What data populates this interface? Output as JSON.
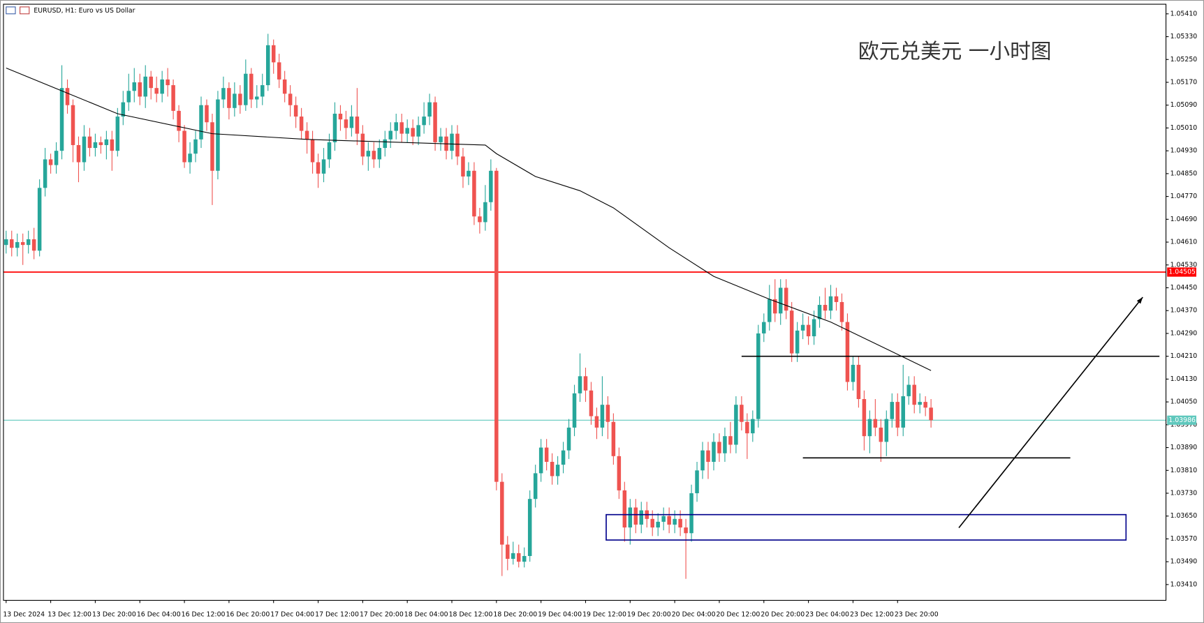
{
  "chart_data": {
    "type": "candlestick",
    "title": "EURUSD, H1:  Euro vs US Dollar",
    "annotation": "欧元兑美元 一小时图",
    "up_color": "#26a69a",
    "down_color": "#ef5350",
    "ylim": [
      1.03356,
      1.05445
    ],
    "xlim": [
      -0.41,
      208.1
    ],
    "yticks": [
      {
        "value": 1.0541,
        "label": "1.05410"
      },
      {
        "value": 1.0533,
        "label": "1.05330"
      },
      {
        "value": 1.0525,
        "label": "1.05250"
      },
      {
        "value": 1.0517,
        "label": "1.05170"
      },
      {
        "value": 1.0509,
        "label": "1.05090"
      },
      {
        "value": 1.0501,
        "label": "1.05010"
      },
      {
        "value": 1.0493,
        "label": "1.04930"
      },
      {
        "value": 1.0485,
        "label": "1.04850"
      },
      {
        "value": 1.0477,
        "label": "1.04770"
      },
      {
        "value": 1.0469,
        "label": "1.04690"
      },
      {
        "value": 1.0461,
        "label": "1.04610"
      },
      {
        "value": 1.0453,
        "label": "1.04530"
      },
      {
        "value": 1.0445,
        "label": "1.04450"
      },
      {
        "value": 1.0437,
        "label": "1.04370"
      },
      {
        "value": 1.0429,
        "label": "1.04290"
      },
      {
        "value": 1.0421,
        "label": "1.04210"
      },
      {
        "value": 1.0413,
        "label": "1.04130"
      },
      {
        "value": 1.0405,
        "label": "1.04050"
      },
      {
        "value": 1.0397,
        "label": "1.03970"
      },
      {
        "value": 1.0389,
        "label": "1.03890"
      },
      {
        "value": 1.0381,
        "label": "1.03810"
      },
      {
        "value": 1.0373,
        "label": "1.03730"
      },
      {
        "value": 1.0365,
        "label": "1.03650"
      },
      {
        "value": 1.0357,
        "label": "1.03570"
      },
      {
        "value": 1.0349,
        "label": "1.03490"
      },
      {
        "value": 1.0341,
        "label": "1.03410"
      }
    ],
    "categories": [
      "13 Dec 2024",
      null,
      null,
      null,
      null,
      null,
      null,
      null,
      "13 Dec 12:00",
      null,
      null,
      null,
      null,
      null,
      null,
      null,
      "13 Dec 20:00",
      null,
      null,
      null,
      null,
      null,
      null,
      null,
      "16 Dec 04:00",
      null,
      null,
      null,
      null,
      null,
      null,
      null,
      "16 Dec 12:00",
      null,
      null,
      null,
      null,
      null,
      null,
      null,
      "16 Dec 20:00",
      null,
      null,
      null,
      null,
      null,
      null,
      null,
      "17 Dec 04:00",
      null,
      null,
      null,
      null,
      null,
      null,
      null,
      "17 Dec 12:00",
      null,
      null,
      null,
      null,
      null,
      null,
      null,
      "17 Dec 20:00",
      null,
      null,
      null,
      null,
      null,
      null,
      null,
      "18 Dec 04:00",
      null,
      null,
      null,
      null,
      null,
      null,
      null,
      "18 Dec 12:00",
      null,
      null,
      null,
      null,
      null,
      null,
      null,
      "18 Dec 20:00",
      null,
      null,
      null,
      null,
      null,
      null,
      null,
      "19 Dec 04:00",
      null,
      null,
      null,
      null,
      null,
      null,
      null,
      "19 Dec 12:00",
      null,
      null,
      null,
      null,
      null,
      null,
      null,
      "19 Dec 20:00",
      null,
      null,
      null,
      null,
      null,
      null,
      null,
      "20 Dec 04:00",
      null,
      null,
      null,
      null,
      null,
      null,
      null,
      "20 Dec 12:00",
      null,
      null,
      null,
      null,
      null,
      null,
      null,
      "20 Dec 20:00",
      null,
      null,
      null,
      null,
      null,
      null,
      null,
      "23 Dec 04:00",
      null,
      null,
      null,
      null,
      null,
      null,
      null,
      "23 Dec 12:00",
      null,
      null,
      null,
      null,
      null,
      null,
      null,
      "23 Dec 20:00",
      null,
      null,
      null,
      null,
      null,
      null
    ],
    "open": [
      1.046,
      1.0462,
      1.0459,
      1.0461,
      1.046,
      1.0462,
      1.0458,
      1.048,
      1.049,
      1.0488,
      1.0493,
      1.0515,
      1.0509,
      1.0495,
      1.0489,
      1.0498,
      1.0494,
      1.0496,
      1.0495,
      1.0497,
      1.0493,
      1.0505,
      1.051,
      1.0514,
      1.0517,
      1.0512,
      1.0519,
      1.0515,
      1.0513,
      1.0518,
      1.0516,
      1.0507,
      1.05,
      1.0489,
      1.0492,
      1.0497,
      1.0509,
      1.0503,
      1.0486,
      1.0511,
      1.0515,
      1.0508,
      1.0513,
      1.0509,
      1.052,
      1.0511,
      1.0512,
      1.0516,
      1.053,
      1.0524,
      1.0518,
      1.0513,
      1.0509,
      1.0505,
      1.05,
      1.0497,
      1.0489,
      1.0485,
      1.049,
      1.0496,
      1.0506,
      1.0504,
      1.0501,
      1.0505,
      1.0499,
      1.0491,
      1.0493,
      1.049,
      1.0494,
      1.0497,
      1.05,
      1.0503,
      1.0499,
      1.0501,
      1.0498,
      1.0502,
      1.0505,
      1.051,
      1.0496,
      1.0498,
      1.0493,
      1.0499,
      1.0491,
      1.0484,
      1.0486,
      1.047,
      1.0468,
      1.0475,
      1.0486,
      1.0377,
      1.0355,
      1.035,
      1.0352,
      1.0349,
      1.0351,
      1.0371,
      1.038,
      1.0389,
      1.0384,
      1.0379,
      1.0383,
      1.0388,
      1.0396,
      1.0408,
      1.0414,
      1.0409,
      1.04,
      1.0396,
      1.0404,
      1.0398,
      1.0386,
      1.0374,
      1.0361,
      1.0368,
      1.0362,
      1.0367,
      1.0364,
      1.0361,
      1.0363,
      1.0365,
      1.0362,
      1.0364,
      1.0361,
      1.0359,
      1.0373,
      1.0381,
      1.0388,
      1.0384,
      1.0391,
      1.0387,
      1.0393,
      1.039,
      1.0404,
      1.0398,
      1.0394,
      1.0399,
      1.0429,
      1.0433,
      1.0441,
      1.0436,
      1.0445,
      1.0437,
      1.0422,
      1.043,
      1.0432,
      1.0428,
      1.0434,
      1.0439,
      1.0437,
      1.0442,
      1.044,
      1.0433,
      1.0412,
      1.0418,
      1.0406,
      1.0393,
      1.0399,
      1.0396,
      1.0391,
      1.0399,
      1.0405,
      1.0396,
      1.0407,
      1.0411,
      1.0404,
      1.0405,
      1.0403
    ],
    "high": [
      1.0465,
      1.0465,
      1.0464,
      1.0464,
      1.0465,
      1.0466,
      1.0483,
      1.0494,
      1.0492,
      1.0496,
      1.0523,
      1.0518,
      1.0511,
      1.0498,
      1.0502,
      1.0501,
      1.0499,
      1.0498,
      1.05,
      1.05,
      1.0508,
      1.0514,
      1.052,
      1.0522,
      1.052,
      1.0523,
      1.0521,
      1.0519,
      1.0521,
      1.0522,
      1.0518,
      1.0509,
      1.0502,
      1.0496,
      1.05,
      1.0512,
      1.0511,
      1.0506,
      1.0514,
      1.0519,
      1.0517,
      1.0517,
      1.0516,
      1.0525,
      1.0522,
      1.0516,
      1.052,
      1.0534,
      1.0532,
      1.0527,
      1.0521,
      1.0516,
      1.0512,
      1.0508,
      1.0503,
      1.05,
      1.0492,
      1.0494,
      1.0499,
      1.051,
      1.0509,
      1.0507,
      1.0509,
      1.0515,
      1.0502,
      1.0496,
      1.0496,
      1.0497,
      1.05,
      1.0503,
      1.0506,
      1.0506,
      1.0504,
      1.0504,
      1.0505,
      1.051,
      1.0513,
      1.0512,
      1.0501,
      1.0501,
      1.0502,
      1.0502,
      1.0494,
      1.0489,
      1.0489,
      1.0473,
      1.0481,
      1.049,
      1.0487,
      1.038,
      1.0358,
      1.0356,
      1.0355,
      1.0354,
      1.0374,
      1.0383,
      1.0392,
      1.0392,
      1.0387,
      1.0386,
      1.0391,
      1.0399,
      1.0411,
      1.0422,
      1.0417,
      1.0412,
      1.0403,
      1.0414,
      1.0407,
      1.0401,
      1.0389,
      1.0377,
      1.0371,
      1.0371,
      1.037,
      1.037,
      1.0367,
      1.0366,
      1.0368,
      1.0368,
      1.0367,
      1.0367,
      1.0364,
      1.0376,
      1.0384,
      1.0391,
      1.0391,
      1.0394,
      1.0394,
      1.0396,
      1.0398,
      1.0407,
      1.0407,
      1.0401,
      1.0402,
      1.0432,
      1.0436,
      1.0446,
      1.0448,
      1.0448,
      1.0448,
      1.044,
      1.0433,
      1.0436,
      1.0435,
      1.0437,
      1.0442,
      1.0445,
      1.0446,
      1.0445,
      1.0443,
      1.0436,
      1.0421,
      1.0421,
      1.0409,
      1.0402,
      1.0406,
      1.0399,
      1.0402,
      1.0408,
      1.0408,
      1.0418,
      1.0414,
      1.0414,
      1.0408,
      1.0407,
      1.0406
    ],
    "low": [
      1.0457,
      1.0456,
      1.0456,
      1.0453,
      1.0457,
      1.0455,
      1.0456,
      1.0477,
      1.0485,
      1.0485,
      1.049,
      1.0506,
      1.0489,
      1.0482,
      1.0486,
      1.0491,
      1.0491,
      1.0492,
      1.049,
      1.0486,
      1.0491,
      1.0502,
      1.0507,
      1.051,
      1.0509,
      1.0508,
      1.0511,
      1.051,
      1.051,
      1.0512,
      1.0504,
      1.0496,
      1.0487,
      1.0485,
      1.0489,
      1.0494,
      1.05,
      1.0474,
      1.0483,
      1.0508,
      1.0504,
      1.0505,
      1.0506,
      1.0507,
      1.0508,
      1.0508,
      1.0509,
      1.0514,
      1.052,
      1.0515,
      1.051,
      1.0505,
      1.0501,
      1.0497,
      1.0492,
      1.0485,
      1.048,
      1.0482,
      1.0487,
      1.0493,
      1.05,
      1.0497,
      1.0498,
      1.0495,
      1.0488,
      1.0486,
      1.0487,
      1.0487,
      1.0491,
      1.0494,
      1.0497,
      1.0496,
      1.0496,
      1.0495,
      1.0495,
      1.0499,
      1.0502,
      1.0493,
      1.0493,
      1.049,
      1.049,
      1.0488,
      1.048,
      1.0481,
      1.0467,
      1.0464,
      1.0465,
      1.0472,
      1.0374,
      1.0344,
      1.0346,
      1.0348,
      1.0347,
      1.0347,
      1.0349,
      1.0368,
      1.0377,
      1.0381,
      1.0376,
      1.0376,
      1.038,
      1.0385,
      1.0393,
      1.0405,
      1.0405,
      1.0397,
      1.0392,
      1.0393,
      1.0392,
      1.0383,
      1.0371,
      1.0356,
      1.0355,
      1.0359,
      1.0359,
      1.0361,
      1.0358,
      1.0358,
      1.036,
      1.0359,
      1.0359,
      1.0358,
      1.0343,
      1.0356,
      1.037,
      1.0378,
      1.0378,
      1.0381,
      1.0384,
      1.0384,
      1.0387,
      1.0387,
      1.0395,
      1.0385,
      1.0391,
      1.0396,
      1.0426,
      1.043,
      1.0433,
      1.0432,
      1.0434,
      1.0419,
      1.0419,
      1.0427,
      1.0425,
      1.0425,
      1.0431,
      1.0434,
      1.0434,
      1.0437,
      1.043,
      1.0409,
      1.0409,
      1.0403,
      1.0388,
      1.0387,
      1.0393,
      1.0384,
      1.0386,
      1.0396,
      1.0393,
      1.0393,
      1.0404,
      1.0401,
      1.0401,
      1.04,
      1.0396
    ],
    "close": [
      1.0462,
      1.0459,
      1.0461,
      1.046,
      1.0462,
      1.0458,
      1.048,
      1.049,
      1.0488,
      1.0493,
      1.0515,
      1.0509,
      1.0495,
      1.0489,
      1.0498,
      1.0494,
      1.0496,
      1.0495,
      1.0497,
      1.0493,
      1.0505,
      1.051,
      1.0514,
      1.0517,
      1.0512,
      1.0519,
      1.0515,
      1.0513,
      1.0518,
      1.0516,
      1.0507,
      1.05,
      1.0489,
      1.0492,
      1.0497,
      1.0509,
      1.0503,
      1.0486,
      1.0511,
      1.0515,
      1.0508,
      1.0513,
      1.0509,
      1.052,
      1.0511,
      1.0512,
      1.0516,
      1.053,
      1.0524,
      1.0518,
      1.0513,
      1.0509,
      1.0505,
      1.05,
      1.0497,
      1.0489,
      1.0485,
      1.049,
      1.0496,
      1.0506,
      1.0504,
      1.0501,
      1.0505,
      1.0499,
      1.0491,
      1.0493,
      1.049,
      1.0494,
      1.0497,
      1.05,
      1.0503,
      1.0499,
      1.0501,
      1.0498,
      1.0502,
      1.0505,
      1.051,
      1.0496,
      1.0498,
      1.0493,
      1.0499,
      1.0491,
      1.0484,
      1.0486,
      1.047,
      1.0468,
      1.0475,
      1.0486,
      1.0377,
      1.0355,
      1.035,
      1.0352,
      1.0349,
      1.0351,
      1.0371,
      1.038,
      1.0389,
      1.0384,
      1.0379,
      1.0383,
      1.0388,
      1.0396,
      1.0408,
      1.0414,
      1.0409,
      1.04,
      1.0396,
      1.0404,
      1.0398,
      1.0386,
      1.0374,
      1.0361,
      1.0368,
      1.0362,
      1.0367,
      1.0364,
      1.0361,
      1.0363,
      1.0365,
      1.0362,
      1.0364,
      1.0361,
      1.0359,
      1.0373,
      1.0381,
      1.0388,
      1.0384,
      1.0391,
      1.0387,
      1.0393,
      1.039,
      1.0404,
      1.0398,
      1.0394,
      1.0399,
      1.0429,
      1.0433,
      1.0441,
      1.0436,
      1.0445,
      1.0437,
      1.0422,
      1.043,
      1.0432,
      1.0428,
      1.0434,
      1.0439,
      1.0437,
      1.0442,
      1.044,
      1.0433,
      1.0412,
      1.0418,
      1.0406,
      1.0393,
      1.0399,
      1.0396,
      1.0391,
      1.0399,
      1.0405,
      1.0396,
      1.0407,
      1.0411,
      1.0404,
      1.0405,
      1.0403,
      1.03986
    ],
    "moving_average": {
      "color": "#000000",
      "x": [
        0,
        10,
        20,
        37,
        54,
        86,
        88,
        95,
        103,
        109,
        119,
        127,
        137,
        148,
        166
      ],
      "values": [
        1.0522,
        1.0514,
        1.0506,
        1.0499,
        1.0497,
        1.0495,
        1.0492,
        1.0484,
        1.0479,
        1.0473,
        1.0459,
        1.0449,
        1.0441,
        1.0433,
        1.0416
      ]
    },
    "hlines": [
      {
        "value": 1.04505,
        "color": "#ff0000"
      },
      {
        "value": 1.03986,
        "color": "#5fc8bd"
      }
    ],
    "segments": [
      {
        "color": "#000000",
        "x": [
          132,
          207
        ],
        "values": [
          1.0421,
          1.0421
        ]
      },
      {
        "color": "#000000",
        "x": [
          143,
          191
        ],
        "values": [
          1.03854,
          1.03854
        ]
      }
    ],
    "zone": {
      "color": "#00008b",
      "x": [
        107.7,
        201
      ],
      "values": [
        1.03655,
        1.03566
      ]
    },
    "arrow": {
      "color": "#000000",
      "x": [
        171,
        204
      ],
      "values": [
        1.03609,
        1.04417
      ]
    }
  }
}
